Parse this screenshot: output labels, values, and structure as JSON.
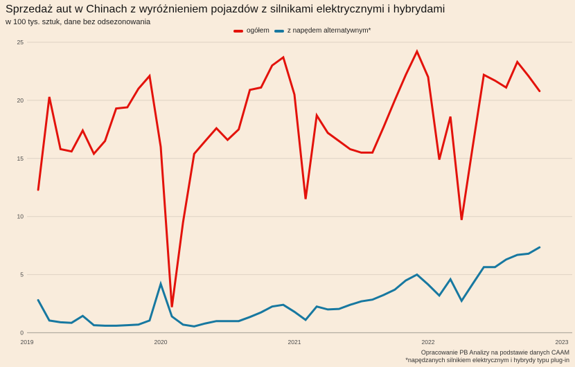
{
  "title": "Sprzedaż aut w Chinach z wyróżnieniem pojazdów z silnikami elektrycznymi i hybrydami",
  "subtitle": "w 100 tys. sztuk, dane bez odsezonowania",
  "footer": {
    "line1": "Opracowanie PB Analizy na podstawie danych CAAM",
    "line2": "*napędzanych silnikiem elektrycznym i hybrydy typu plug-in"
  },
  "colors": {
    "background": "#f9ecdc",
    "total_line": "#e3120b",
    "alternative_line": "#1778a0",
    "gridline": "#ded2c3",
    "zero_line": "#b3aca1",
    "tick_text": "#4a4a4a"
  },
  "chart_data": {
    "type": "line",
    "title": "Sprzedaż aut w Chinach z wyróżnieniem pojazdów z silnikami elektrycznymi i hybrydami",
    "subtitle": "w 100 tys. sztuk, dane bez odsezonowania",
    "x_unit": "month",
    "x_start": "2019-02",
    "x_end": "2022-11",
    "x_tick_labels": [
      "2019",
      "2020",
      "2021",
      "2022",
      "2023"
    ],
    "y_ticks": [
      0,
      5,
      10,
      15,
      20,
      25
    ],
    "ylim": [
      0,
      25
    ],
    "grid": "horizontal",
    "legend_position": "top-center",
    "series": [
      {
        "name": "ogółem",
        "color": "#e3120b",
        "values": [
          12.3,
          20.3,
          15.8,
          15.6,
          17.4,
          15.4,
          16.5,
          19.3,
          19.4,
          21.0,
          22.1,
          16.0,
          2.2,
          9.5,
          15.4,
          16.5,
          17.6,
          16.6,
          17.5,
          20.9,
          21.1,
          23.0,
          23.7,
          20.5,
          11.5,
          18.7,
          17.2,
          16.5,
          15.8,
          15.5,
          15.5,
          17.7,
          20.0,
          22.2,
          24.2,
          22.0,
          14.9,
          18.6,
          9.7,
          16.0,
          22.2,
          21.7,
          21.1,
          23.3,
          22.1,
          20.8
        ]
      },
      {
        "name": "z napędem alternatywnym*",
        "color": "#1778a0",
        "values": [
          2.8,
          1.05,
          0.9,
          0.85,
          1.45,
          0.65,
          0.6,
          0.6,
          0.65,
          0.7,
          1.05,
          4.2,
          1.4,
          0.7,
          0.55,
          0.8,
          1.0,
          1.0,
          1.0,
          1.35,
          1.75,
          2.25,
          2.4,
          1.8,
          1.1,
          2.25,
          2.0,
          2.05,
          2.4,
          2.7,
          2.85,
          3.25,
          3.7,
          4.5,
          5.0,
          4.15,
          3.2,
          4.6,
          2.75,
          4.2,
          5.65,
          5.65,
          6.3,
          6.7,
          6.8,
          7.35
        ]
      }
    ]
  }
}
